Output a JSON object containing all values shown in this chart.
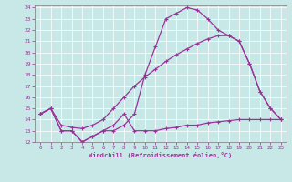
{
  "xlabel": "Windchill (Refroidissement éolien,°C)",
  "xlim": [
    -0.5,
    23.5
  ],
  "ylim": [
    12,
    24.2
  ],
  "yticks": [
    12,
    13,
    14,
    15,
    16,
    17,
    18,
    19,
    20,
    21,
    22,
    23,
    24
  ],
  "xticks": [
    0,
    1,
    2,
    3,
    4,
    5,
    6,
    7,
    8,
    9,
    10,
    11,
    12,
    13,
    14,
    15,
    16,
    17,
    18,
    19,
    20,
    21,
    22,
    23
  ],
  "bg_color": "#c8e8e8",
  "line_color": "#993399",
  "grid_color": "#b0d8d8",
  "line1_x": [
    0,
    1,
    2,
    3,
    4,
    5,
    6,
    7,
    8,
    9,
    10,
    11,
    12,
    13,
    14,
    15,
    16,
    17,
    18,
    19,
    20,
    21,
    22,
    23
  ],
  "line1_y": [
    14.5,
    15.0,
    13.0,
    13.0,
    12.0,
    12.5,
    13.0,
    13.0,
    13.5,
    14.5,
    18.0,
    20.5,
    23.0,
    23.5,
    24.0,
    23.8,
    23.0,
    22.0,
    21.5,
    21.0,
    19.0,
    16.5,
    15.0,
    14.0
  ],
  "line2_x": [
    0,
    1,
    2,
    3,
    4,
    5,
    6,
    7,
    8,
    9,
    10,
    11,
    12,
    13,
    14,
    15,
    16,
    17,
    18,
    19,
    20,
    21,
    22,
    23
  ],
  "line2_y": [
    14.5,
    15.0,
    13.0,
    13.0,
    12.0,
    12.5,
    13.0,
    13.5,
    14.5,
    13.0,
    13.0,
    13.0,
    13.2,
    13.3,
    13.5,
    13.5,
    13.7,
    13.8,
    13.9,
    14.0,
    14.0,
    14.0,
    14.0,
    14.0
  ],
  "line3_x": [
    0,
    1,
    2,
    3,
    4,
    5,
    6,
    7,
    8,
    9,
    10,
    11,
    12,
    13,
    14,
    15,
    16,
    17,
    18,
    19,
    20,
    21,
    22,
    23
  ],
  "line3_y": [
    14.5,
    15.0,
    13.5,
    13.3,
    13.2,
    13.5,
    14.0,
    15.0,
    16.0,
    17.0,
    17.8,
    18.5,
    19.2,
    19.8,
    20.3,
    20.8,
    21.2,
    21.5,
    21.5,
    21.0,
    19.0,
    16.5,
    15.0,
    14.0
  ]
}
